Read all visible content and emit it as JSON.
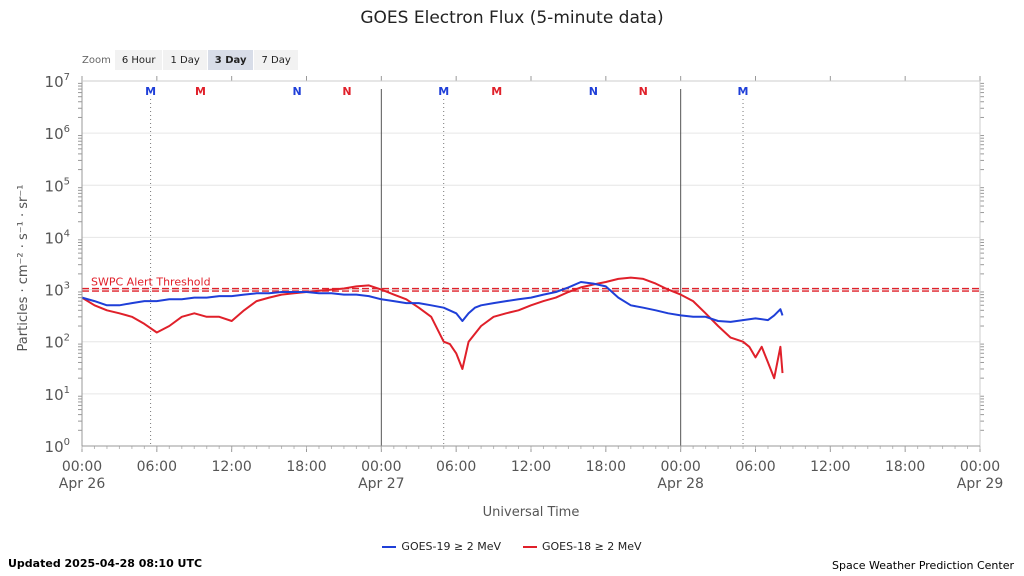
{
  "chart_data": {
    "type": "line",
    "title": "GOES Electron Flux (5-minute data)",
    "xlabel": "Universal Time",
    "ylabel": "Particles · cm⁻² · s⁻¹ · sr⁻¹",
    "y_scale": "log",
    "ylim": [
      1,
      10000000
    ],
    "y_ticks": [
      {
        "base": "10",
        "exp": "0",
        "value": 1
      },
      {
        "base": "10",
        "exp": "1",
        "value": 10
      },
      {
        "base": "10",
        "exp": "2",
        "value": 100
      },
      {
        "base": "10",
        "exp": "3",
        "value": 1000
      },
      {
        "base": "10",
        "exp": "4",
        "value": 10000
      },
      {
        "base": "10",
        "exp": "5",
        "value": 100000
      },
      {
        "base": "10",
        "exp": "6",
        "value": 1000000
      },
      {
        "base": "10",
        "exp": "7",
        "value": 10000000
      }
    ],
    "xlim": [
      "2025-04-26T00:00Z",
      "2025-04-29T00:00Z"
    ],
    "x_ticks": [
      {
        "time": "2025-04-26T00:00Z",
        "label": "00:00",
        "sublabel": "Apr 26"
      },
      {
        "time": "2025-04-26T06:00Z",
        "label": "06:00",
        "sublabel": ""
      },
      {
        "time": "2025-04-26T12:00Z",
        "label": "12:00",
        "sublabel": ""
      },
      {
        "time": "2025-04-26T18:00Z",
        "label": "18:00",
        "sublabel": ""
      },
      {
        "time": "2025-04-27T00:00Z",
        "label": "00:00",
        "sublabel": "Apr 27"
      },
      {
        "time": "2025-04-27T06:00Z",
        "label": "06:00",
        "sublabel": ""
      },
      {
        "time": "2025-04-27T12:00Z",
        "label": "12:00",
        "sublabel": ""
      },
      {
        "time": "2025-04-27T18:00Z",
        "label": "18:00",
        "sublabel": ""
      },
      {
        "time": "2025-04-28T00:00Z",
        "label": "00:00",
        "sublabel": "Apr 28"
      },
      {
        "time": "2025-04-28T06:00Z",
        "label": "06:00",
        "sublabel": ""
      },
      {
        "time": "2025-04-28T12:00Z",
        "label": "12:00",
        "sublabel": ""
      },
      {
        "time": "2025-04-28T18:00Z",
        "label": "18:00",
        "sublabel": ""
      },
      {
        "time": "2025-04-29T00:00Z",
        "label": "00:00",
        "sublabel": "Apr 29"
      }
    ],
    "day_boundaries": [
      "2025-04-27T00:00Z",
      "2025-04-28T00:00Z"
    ],
    "threshold": {
      "label": "SWPC Alert Threshold",
      "value": 1000,
      "color": "#e0202a"
    },
    "markers": [
      {
        "label": "M",
        "time": "2025-04-26T05:30Z",
        "color": "#1f3fd8",
        "dotted": true
      },
      {
        "label": "M",
        "time": "2025-04-26T09:30Z",
        "color": "#e0202a",
        "dotted": false
      },
      {
        "label": "N",
        "time": "2025-04-26T17:15Z",
        "color": "#1f3fd8",
        "dotted": false
      },
      {
        "label": "N",
        "time": "2025-04-26T21:15Z",
        "color": "#e0202a",
        "dotted": false
      },
      {
        "label": "M",
        "time": "2025-04-27T05:00Z",
        "color": "#1f3fd8",
        "dotted": true
      },
      {
        "label": "M",
        "time": "2025-04-27T09:15Z",
        "color": "#e0202a",
        "dotted": false
      },
      {
        "label": "N",
        "time": "2025-04-27T17:00Z",
        "color": "#1f3fd8",
        "dotted": false
      },
      {
        "label": "N",
        "time": "2025-04-27T21:00Z",
        "color": "#e0202a",
        "dotted": false
      },
      {
        "label": "M",
        "time": "2025-04-28T05:00Z",
        "color": "#1f3fd8",
        "dotted": true
      }
    ],
    "series": [
      {
        "name": "GOES-19 ≥ 2 MeV",
        "color": "#1f3fd8",
        "x": [
          "2025-04-26T00:00Z",
          "2025-04-26T01:00Z",
          "2025-04-26T02:00Z",
          "2025-04-26T03:00Z",
          "2025-04-26T04:00Z",
          "2025-04-26T05:00Z",
          "2025-04-26T06:00Z",
          "2025-04-26T07:00Z",
          "2025-04-26T08:00Z",
          "2025-04-26T09:00Z",
          "2025-04-26T10:00Z",
          "2025-04-26T11:00Z",
          "2025-04-26T12:00Z",
          "2025-04-26T13:00Z",
          "2025-04-26T14:00Z",
          "2025-04-26T15:00Z",
          "2025-04-26T16:00Z",
          "2025-04-26T17:00Z",
          "2025-04-26T18:00Z",
          "2025-04-26T19:00Z",
          "2025-04-26T20:00Z",
          "2025-04-26T21:00Z",
          "2025-04-26T22:00Z",
          "2025-04-26T23:00Z",
          "2025-04-27T00:00Z",
          "2025-04-27T01:00Z",
          "2025-04-27T02:00Z",
          "2025-04-27T03:00Z",
          "2025-04-27T04:00Z",
          "2025-04-27T05:00Z",
          "2025-04-27T06:00Z",
          "2025-04-27T06:30Z",
          "2025-04-27T07:00Z",
          "2025-04-27T07:30Z",
          "2025-04-27T08:00Z",
          "2025-04-27T09:00Z",
          "2025-04-27T10:00Z",
          "2025-04-27T11:00Z",
          "2025-04-27T12:00Z",
          "2025-04-27T13:00Z",
          "2025-04-27T14:00Z",
          "2025-04-27T15:00Z",
          "2025-04-27T16:00Z",
          "2025-04-27T17:00Z",
          "2025-04-27T18:00Z",
          "2025-04-27T19:00Z",
          "2025-04-27T20:00Z",
          "2025-04-27T21:00Z",
          "2025-04-27T22:00Z",
          "2025-04-27T23:00Z",
          "2025-04-28T00:00Z",
          "2025-04-28T01:00Z",
          "2025-04-28T02:00Z",
          "2025-04-28T03:00Z",
          "2025-04-28T04:00Z",
          "2025-04-28T05:00Z",
          "2025-04-28T06:00Z",
          "2025-04-28T07:00Z",
          "2025-04-28T07:30Z",
          "2025-04-28T08:00Z",
          "2025-04-28T08:10Z"
        ],
        "y": [
          700,
          600,
          500,
          500,
          550,
          600,
          600,
          650,
          650,
          700,
          700,
          750,
          750,
          800,
          850,
          850,
          900,
          900,
          900,
          850,
          850,
          800,
          800,
          750,
          650,
          600,
          550,
          550,
          500,
          450,
          350,
          250,
          350,
          450,
          500,
          550,
          600,
          650,
          700,
          800,
          900,
          1100,
          1400,
          1300,
          1150,
          700,
          500,
          450,
          400,
          350,
          320,
          300,
          300,
          250,
          240,
          260,
          280,
          260,
          320,
          420,
          320
        ]
      },
      {
        "name": "GOES-18 ≥ 2 MeV",
        "color": "#e0202a",
        "x": [
          "2025-04-26T00:00Z",
          "2025-04-26T01:00Z",
          "2025-04-26T02:00Z",
          "2025-04-26T03:00Z",
          "2025-04-26T04:00Z",
          "2025-04-26T05:00Z",
          "2025-04-26T06:00Z",
          "2025-04-26T07:00Z",
          "2025-04-26T08:00Z",
          "2025-04-26T09:00Z",
          "2025-04-26T10:00Z",
          "2025-04-26T11:00Z",
          "2025-04-26T12:00Z",
          "2025-04-26T13:00Z",
          "2025-04-26T14:00Z",
          "2025-04-26T15:00Z",
          "2025-04-26T16:00Z",
          "2025-04-26T17:00Z",
          "2025-04-26T18:00Z",
          "2025-04-26T19:00Z",
          "2025-04-26T20:00Z",
          "2025-04-26T21:00Z",
          "2025-04-26T22:00Z",
          "2025-04-26T23:00Z",
          "2025-04-27T00:00Z",
          "2025-04-27T01:00Z",
          "2025-04-27T02:00Z",
          "2025-04-27T03:00Z",
          "2025-04-27T04:00Z",
          "2025-04-27T05:00Z",
          "2025-04-27T05:30Z",
          "2025-04-27T06:00Z",
          "2025-04-27T06:30Z",
          "2025-04-27T07:00Z",
          "2025-04-27T08:00Z",
          "2025-04-27T09:00Z",
          "2025-04-27T10:00Z",
          "2025-04-27T11:00Z",
          "2025-04-27T12:00Z",
          "2025-04-27T13:00Z",
          "2025-04-27T14:00Z",
          "2025-04-27T15:00Z",
          "2025-04-27T16:00Z",
          "2025-04-27T17:00Z",
          "2025-04-27T18:00Z",
          "2025-04-27T19:00Z",
          "2025-04-27T20:00Z",
          "2025-04-27T21:00Z",
          "2025-04-27T22:00Z",
          "2025-04-27T23:00Z",
          "2025-04-28T00:00Z",
          "2025-04-28T01:00Z",
          "2025-04-28T02:00Z",
          "2025-04-28T03:00Z",
          "2025-04-28T04:00Z",
          "2025-04-28T05:00Z",
          "2025-04-28T05:30Z",
          "2025-04-28T06:00Z",
          "2025-04-28T06:30Z",
          "2025-04-28T07:00Z",
          "2025-04-28T07:30Z",
          "2025-04-28T08:00Z",
          "2025-04-28T08:10Z"
        ],
        "y": [
          700,
          500,
          400,
          350,
          300,
          220,
          150,
          200,
          300,
          350,
          300,
          300,
          250,
          400,
          600,
          700,
          800,
          850,
          900,
          950,
          1000,
          1050,
          1150,
          1200,
          1000,
          800,
          650,
          450,
          300,
          100,
          90,
          60,
          30,
          100,
          200,
          300,
          350,
          400,
          500,
          600,
          700,
          900,
          1100,
          1250,
          1400,
          1600,
          1700,
          1600,
          1300,
          1000,
          800,
          600,
          350,
          200,
          120,
          100,
          80,
          50,
          80,
          40,
          20,
          80,
          25
        ]
      }
    ]
  },
  "zoom": {
    "label": "Zoom",
    "options": [
      "6 Hour",
      "1 Day",
      "3 Day",
      "7 Day"
    ],
    "selected": "3 Day"
  },
  "legend": [
    {
      "label": "GOES-19 ≥ 2 MeV",
      "color": "#1f3fd8"
    },
    {
      "label": "GOES-18 ≥ 2 MeV",
      "color": "#e0202a"
    }
  ],
  "footer": {
    "updated": "Updated 2025-04-28 08:10 UTC",
    "credit": "Space Weather Prediction Center"
  }
}
